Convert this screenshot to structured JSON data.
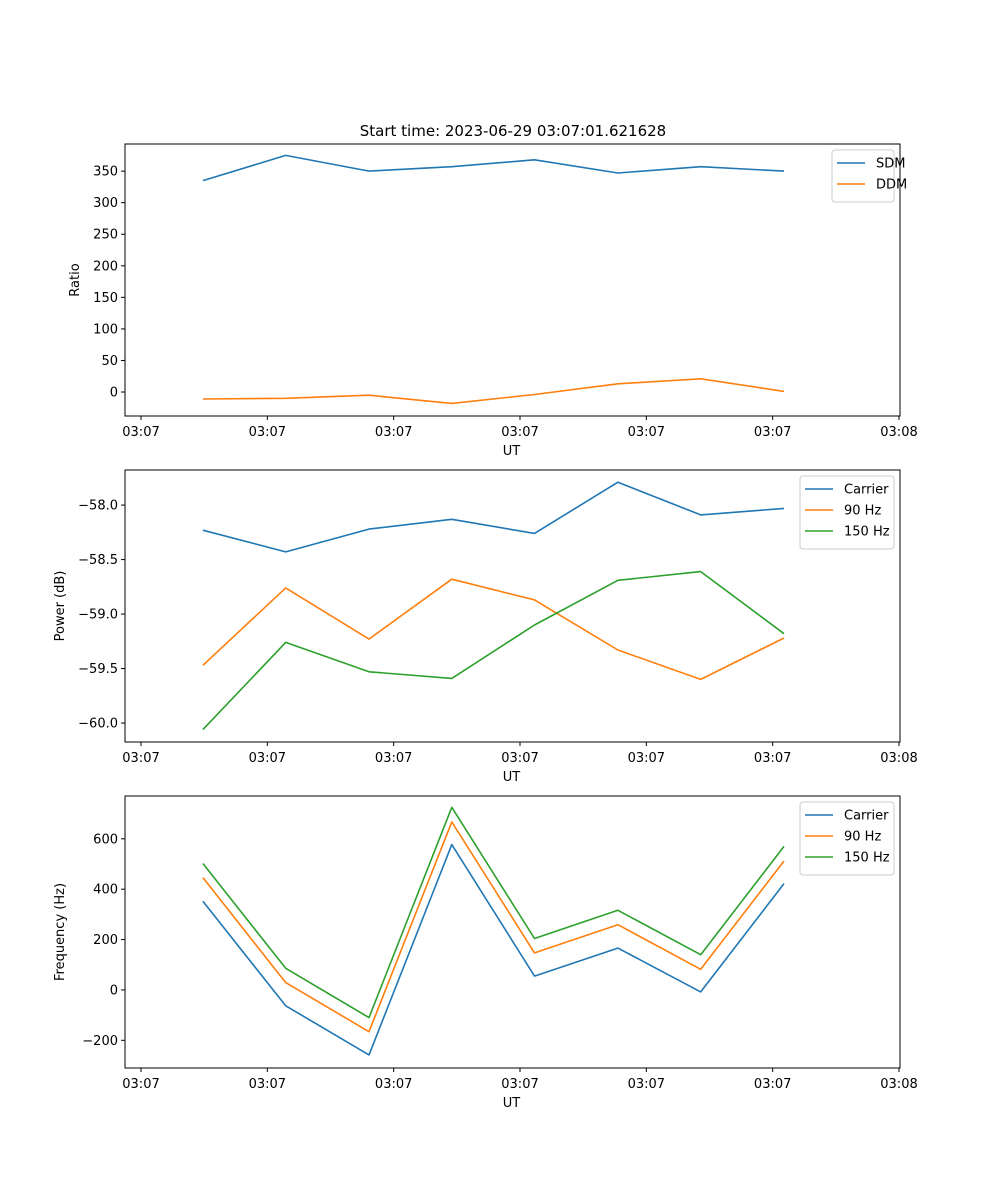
{
  "figure": {
    "title": "Start time: 2023-06-29 03:07:01.621628"
  },
  "chart_data": [
    {
      "type": "line",
      "title": "Start time: 2023-06-29 03:07:01.621628",
      "xlabel": "UT",
      "ylabel": "Ratio",
      "xlim": [
        0,
        12
      ],
      "ylim": [
        -38,
        393
      ],
      "x_ticks": [
        {
          "at": 0,
          "label": "03:07"
        },
        {
          "at": 2,
          "label": "03:07"
        },
        {
          "at": 4,
          "label": "03:07"
        },
        {
          "at": 6,
          "label": "03:07"
        },
        {
          "at": 8,
          "label": "03:07"
        },
        {
          "at": 10,
          "label": "03:07"
        },
        {
          "at": 12,
          "label": "03:08"
        }
      ],
      "y_ticks": [
        0,
        50,
        100,
        150,
        200,
        250,
        300,
        350
      ],
      "y_tick_labels": [
        "0",
        "50",
        "100",
        "150",
        "200",
        "250",
        "300",
        "350"
      ],
      "x": [
        0.98,
        2.29,
        3.61,
        4.92,
        6.23,
        7.55,
        8.86,
        10.18
      ],
      "series": [
        {
          "name": "SDM",
          "color": "#1f77b4",
          "values": [
            335,
            375,
            350,
            357,
            368,
            347,
            357,
            350
          ]
        },
        {
          "name": "DDM",
          "color": "#ff7f0e",
          "values": [
            -11,
            -10,
            -5,
            -18,
            -4,
            13,
            21,
            1
          ]
        }
      ],
      "legend": "upper right",
      "grid": false
    },
    {
      "type": "line",
      "title": "",
      "xlabel": "UT",
      "ylabel": "Power (dB)",
      "xlim": [
        0,
        12
      ],
      "ylim": [
        -60.174,
        -57.678
      ],
      "x_ticks": [
        {
          "at": 0,
          "label": "03:07"
        },
        {
          "at": 2,
          "label": "03:07"
        },
        {
          "at": 4,
          "label": "03:07"
        },
        {
          "at": 6,
          "label": "03:07"
        },
        {
          "at": 8,
          "label": "03:07"
        },
        {
          "at": 10,
          "label": "03:07"
        },
        {
          "at": 12,
          "label": "03:08"
        }
      ],
      "y_ticks": [
        -60.0,
        -59.5,
        -59.0,
        -58.5,
        -58.0
      ],
      "y_tick_labels": [
        "−60.0",
        "−59.5",
        "−59.0",
        "−58.5",
        "−58.0"
      ],
      "x": [
        0.98,
        2.29,
        3.61,
        4.92,
        6.23,
        7.55,
        8.86,
        10.18
      ],
      "series": [
        {
          "name": "Carrier",
          "color": "#1f77b4",
          "values": [
            -58.23,
            -58.43,
            -58.22,
            -58.13,
            -58.26,
            -57.79,
            -58.09,
            -58.03
          ]
        },
        {
          "name": "90 Hz",
          "color": "#ff7f0e",
          "values": [
            -59.47,
            -58.76,
            -59.23,
            -58.68,
            -58.87,
            -59.33,
            -59.6,
            -59.22
          ]
        },
        {
          "name": "150 Hz",
          "color": "#2ca02c",
          "values": [
            -60.06,
            -59.26,
            -59.53,
            -59.59,
            -59.1,
            -58.69,
            -58.61,
            -59.18
          ]
        }
      ],
      "legend": "upper right",
      "grid": false
    },
    {
      "type": "line",
      "title": "",
      "xlabel": "UT",
      "ylabel": "Frequency (Hz)",
      "xlim": [
        0,
        12
      ],
      "ylim": [
        -310,
        770
      ],
      "x_ticks": [
        {
          "at": 0,
          "label": "03:07"
        },
        {
          "at": 2,
          "label": "03:07"
        },
        {
          "at": 4,
          "label": "03:07"
        },
        {
          "at": 6,
          "label": "03:07"
        },
        {
          "at": 8,
          "label": "03:07"
        },
        {
          "at": 10,
          "label": "03:07"
        },
        {
          "at": 12,
          "label": "03:08"
        }
      ],
      "y_ticks": [
        -200,
        0,
        200,
        400,
        600
      ],
      "y_tick_labels": [
        "−200",
        "0",
        "200",
        "400",
        "600"
      ],
      "x": [
        0.98,
        2.29,
        3.61,
        4.92,
        6.23,
        7.55,
        8.86,
        10.18
      ],
      "series": [
        {
          "name": "Carrier",
          "color": "#1f77b4",
          "values": [
            352,
            -63,
            -258,
            577,
            55,
            166,
            -8,
            422
          ]
        },
        {
          "name": "90 Hz",
          "color": "#ff7f0e",
          "values": [
            446,
            29,
            -166,
            667,
            147,
            259,
            82,
            512
          ]
        },
        {
          "name": "150 Hz",
          "color": "#2ca02c",
          "values": [
            502,
            86,
            -110,
            725,
            204,
            316,
            140,
            570
          ]
        }
      ],
      "legend": "upper right",
      "grid": false
    }
  ]
}
